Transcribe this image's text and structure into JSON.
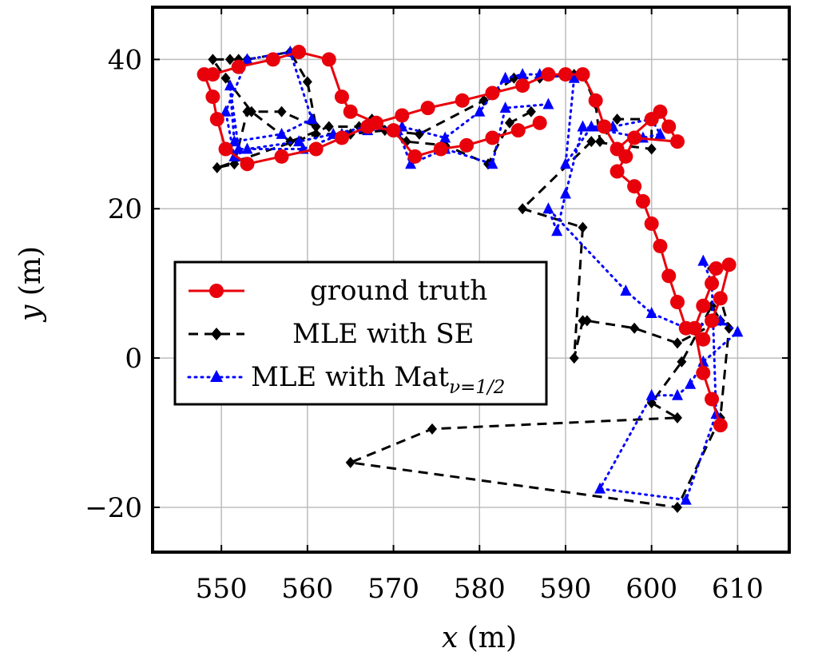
{
  "chart_data": {
    "type": "line",
    "title": "",
    "xlabel_var": "x",
    "xlabel_unit": " (m)",
    "ylabel_var": "y",
    "ylabel_unit": " (m)",
    "xlim": [
      542,
      616
    ],
    "ylim": [
      -26,
      47
    ],
    "xticks": [
      550,
      560,
      570,
      580,
      590,
      600,
      610
    ],
    "yticks": [
      -20,
      0,
      20,
      40
    ],
    "xtick_labels": [
      "550",
      "560",
      "570",
      "580",
      "590",
      "600",
      "610"
    ],
    "ytick_labels": [
      "−20",
      "0",
      "20",
      "40"
    ],
    "grid": true,
    "legend_position": "left-center",
    "series": [
      {
        "name": "ground truth",
        "color": "#e8000b",
        "marker": "circle",
        "line": "solid",
        "x": [
          587,
          584.5,
          581.5,
          578.5,
          575.5,
          572.5,
          570,
          567,
          564,
          561,
          557,
          553,
          550.5,
          549.5,
          549,
          548,
          549,
          552,
          556,
          559,
          562.5,
          564,
          565,
          568,
          571,
          574,
          578,
          581.5,
          585,
          588,
          590,
          592,
          593.5,
          594.5,
          596,
          600,
          601,
          602,
          603,
          598,
          597,
          596,
          598,
          599,
          600,
          601,
          602,
          603,
          604,
          606,
          607,
          608,
          609,
          607.5,
          607,
          606,
          605,
          606,
          607,
          608
        ],
        "y": [
          31.5,
          30.5,
          29.5,
          28.5,
          28,
          27,
          30.5,
          31,
          29.5,
          28,
          27,
          26,
          28,
          32,
          35,
          38,
          38,
          39,
          40,
          41,
          40,
          35,
          33,
          31.5,
          32.5,
          33.5,
          34.5,
          35.5,
          36.5,
          38,
          38,
          38,
          34.5,
          31,
          28,
          32,
          33,
          31,
          29,
          29.5,
          27,
          25,
          23,
          21,
          18,
          15,
          11,
          7.5,
          4,
          2.5,
          5,
          8,
          12.5,
          12,
          10,
          7,
          4,
          -2,
          -5.5,
          -9
        ]
      },
      {
        "name": "MLE with SE",
        "color": "#000000",
        "marker": "diamond",
        "line": "dashed",
        "x": [
          586,
          583.5,
          581,
          576,
          571.5,
          567.5,
          566,
          562.5,
          558,
          553.5,
          550.5,
          549,
          551,
          552,
          553,
          558,
          560,
          561,
          557,
          553,
          551.5,
          549.5,
          561,
          565,
          569,
          573,
          580.5,
          584,
          587,
          591,
          592,
          593.5,
          594,
          596,
          600,
          600,
          593,
          585,
          592,
          591,
          592,
          592.5,
          598,
          603,
          608,
          607,
          603.5,
          600,
          603,
          574.5,
          565,
          603,
          608,
          609,
          607
        ],
        "y": [
          33,
          31.5,
          26,
          28.5,
          29,
          32,
          31,
          31,
          29,
          33,
          37.5,
          40,
          40,
          40,
          40,
          41,
          37,
          31,
          33,
          33,
          26,
          25.5,
          30,
          30,
          30.5,
          30,
          34.5,
          37.5,
          37.5,
          38,
          38,
          34,
          29,
          32,
          32,
          28,
          29,
          20,
          17.5,
          0,
          5,
          5,
          4,
          2,
          5,
          7,
          -0.5,
          -6,
          -8,
          -9.5,
          -14,
          -20,
          -8,
          4,
          12
        ]
      },
      {
        "name": "MLE with Mat",
        "name_sub": "ν=1/2",
        "color": "#0000ff",
        "marker": "triangle",
        "line": "dotted",
        "x": [
          588,
          583,
          581.5,
          576,
          572,
          570.5,
          567,
          563,
          559,
          553,
          551.5,
          550.5,
          553,
          558,
          560.5,
          557,
          551.5,
          551,
          552,
          559.5,
          564,
          567,
          571,
          576,
          580,
          583,
          585,
          587,
          591,
          590,
          593,
          594,
          595.5,
          600,
          601,
          599,
          592,
          590,
          589,
          588,
          597,
          600,
          604,
          608,
          610,
          606,
          604.5,
          603,
          600,
          594,
          604,
          607.5,
          607,
          606
        ],
        "y": [
          34,
          33.5,
          26,
          28,
          26,
          30.5,
          31,
          30,
          29,
          28,
          27,
          33,
          40,
          41,
          32,
          30,
          29,
          36.5,
          28,
          28,
          30,
          30.5,
          31,
          29.5,
          33,
          37.5,
          38,
          38,
          37.5,
          26,
          31,
          31,
          31,
          32,
          30,
          29.5,
          31,
          22,
          17,
          20,
          9,
          6,
          4,
          5,
          3.5,
          -0.5,
          -3.5,
          -5,
          -5,
          -17.5,
          -19,
          -7.5,
          10,
          13
        ]
      }
    ]
  }
}
